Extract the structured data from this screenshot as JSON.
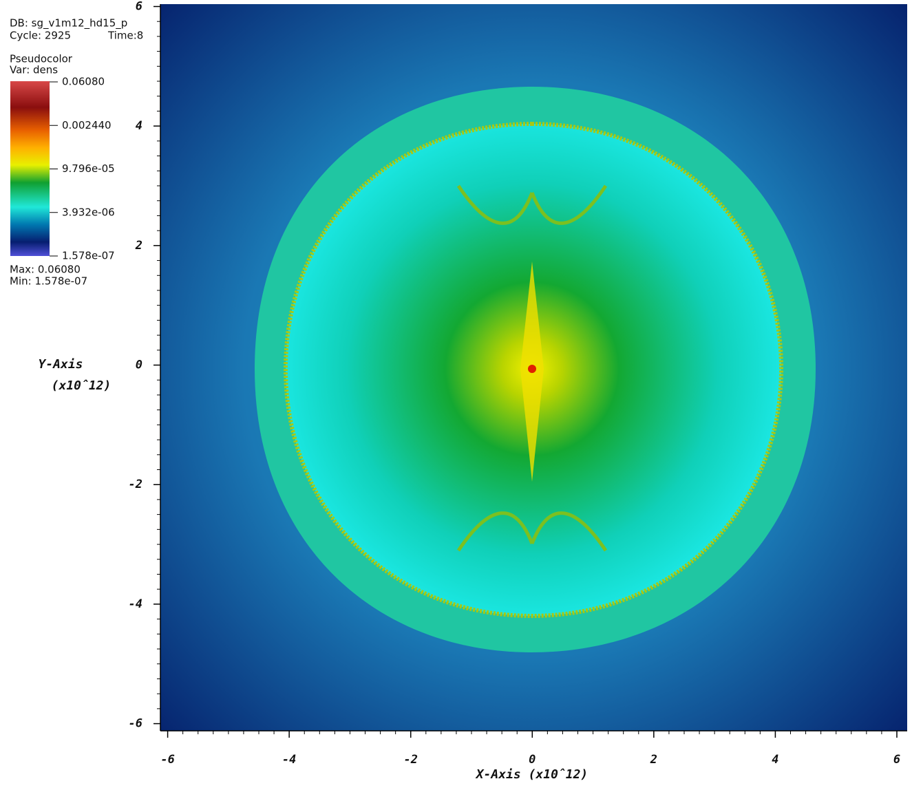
{
  "chart_data": {
    "type": "pseudocolor",
    "db_label": "DB: sg_v1m12_hd15_p",
    "cycle_label": "Cycle: 2925",
    "time_label": "Time:8",
    "legend": {
      "plot_type": "Pseudocolor",
      "variable": "Var: dens",
      "labels": [
        "0.06080",
        "0.002440",
        "9.796e-05",
        "3.932e-06",
        "1.578e-07"
      ],
      "max_label": "Max: 0.06080",
      "min_label": "Min: 1.578e-07"
    },
    "x_label": "X-Axis (x10ˆ12)",
    "y_label": "Y-Axis",
    "y_label_unit": "(x10ˆ12)",
    "xlim": [
      -6.12,
      6.17
    ],
    "ylim": [
      -6.12,
      6.04
    ],
    "xticks": [
      -6,
      -4,
      -2,
      0,
      2,
      4,
      6
    ],
    "yticks": [
      -6,
      -4,
      -2,
      0,
      2,
      4,
      6
    ]
  }
}
